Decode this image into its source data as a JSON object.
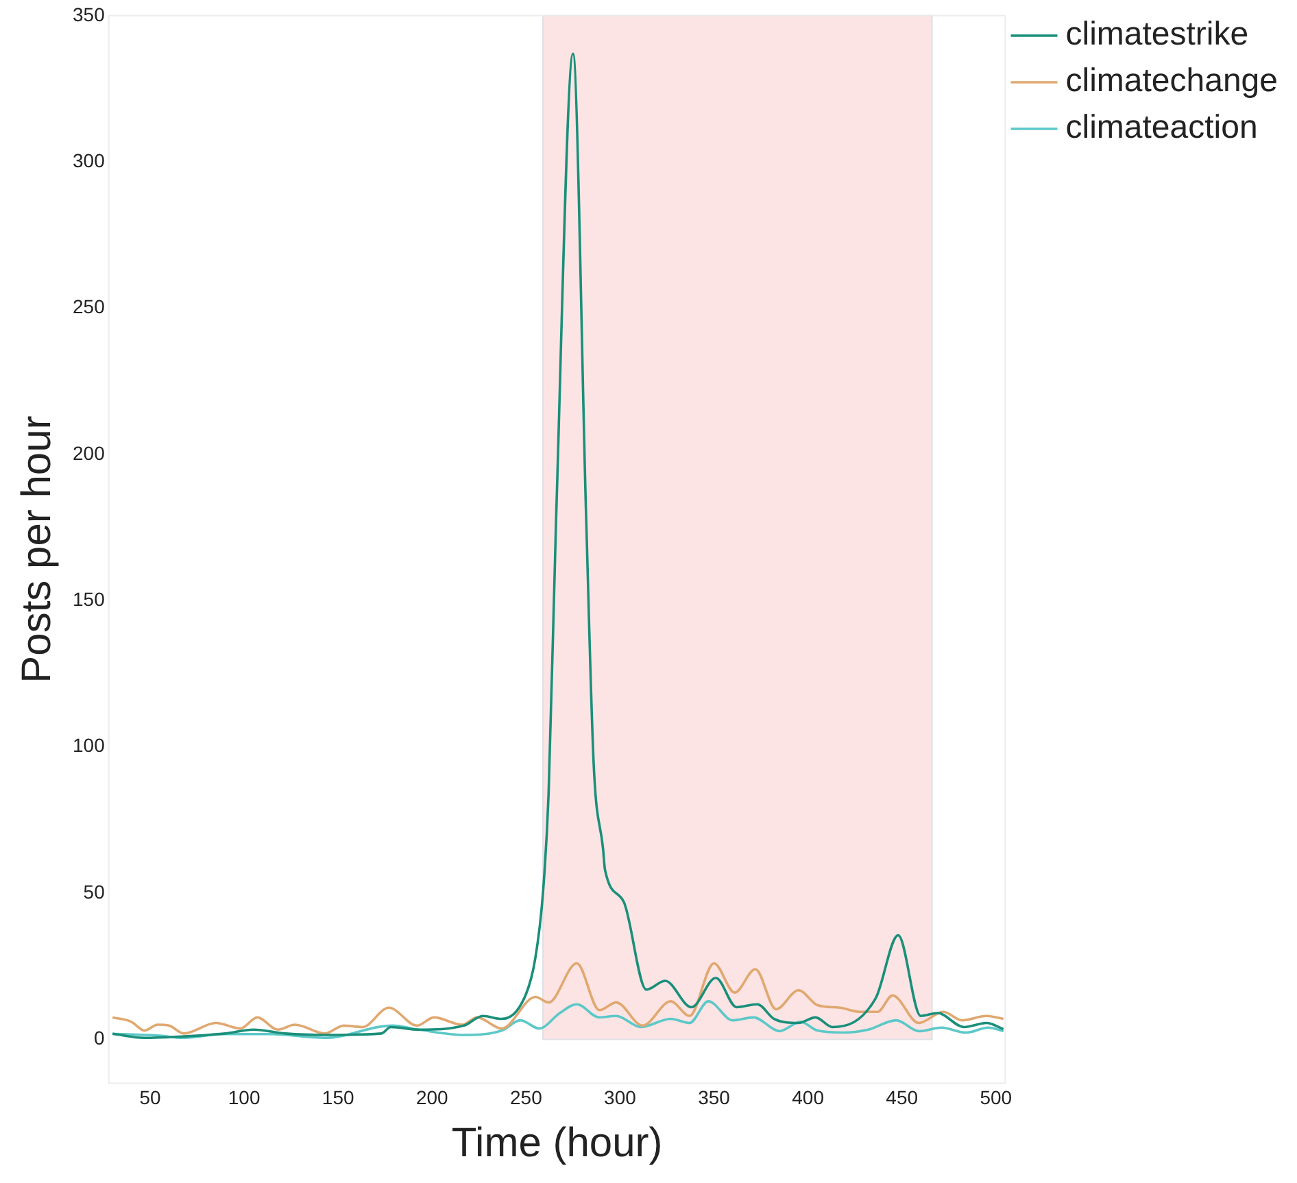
{
  "chart_data": {
    "type": "line",
    "xlabel": "Time (hour)",
    "ylabel": "Posts per hour",
    "xlim": [
      28,
      505
    ],
    "xticks": [
      50,
      100,
      150,
      200,
      250,
      300,
      350,
      400,
      450,
      500
    ],
    "ylim": [
      -15,
      350
    ],
    "yticks": [
      0,
      50,
      100,
      150,
      200,
      250,
      300,
      350
    ],
    "grid": false,
    "legend": "top right",
    "marker": "none",
    "line_style": "solid",
    "bands": [
      {
        "axis": "x",
        "from": 259,
        "to": 466,
        "color": "#fce4e4"
      }
    ],
    "series": [
      {
        "name": "climatestrike",
        "color": "#1a8f7a",
        "x": [
          30,
          47,
          68,
          90,
          105,
          122,
          143,
          173,
          178,
          193,
          217,
          227,
          237,
          250,
          255,
          259,
          262,
          266,
          275,
          282,
          286,
          291,
          292,
          302,
          314,
          324,
          338,
          351,
          362,
          373,
          382,
          395,
          404,
          413,
          436,
          448,
          460,
          469,
          483,
          495,
          504
        ],
        "values": [
          1.9,
          0.5,
          1,
          2,
          3.3,
          2,
          1.5,
          2,
          4.2,
          3.3,
          4.7,
          8,
          7,
          15.5,
          28,
          50,
          84,
          178,
          337,
          178,
          94,
          65,
          58,
          47,
          17,
          20,
          11,
          21,
          11,
          12,
          7,
          5.6,
          7.5,
          4.2,
          14,
          35.6,
          8,
          9,
          4.2,
          5.6,
          3.5
        ]
      },
      {
        "name": "climatechange",
        "color": "#e0a870",
        "x": [
          30,
          40,
          47,
          54,
          60,
          68,
          85,
          98,
          107,
          118,
          127,
          143,
          153,
          163,
          177,
          192,
          201,
          216,
          224,
          237,
          255,
          262,
          277,
          289,
          298,
          312,
          327,
          337,
          350,
          361,
          372,
          383,
          395,
          405,
          417,
          428,
          437,
          445,
          459,
          472,
          482,
          495,
          504
        ],
        "values": [
          7.5,
          6,
          3,
          5,
          4.7,
          2,
          5.6,
          3.7,
          7.5,
          3.3,
          5,
          2,
          4.7,
          4.2,
          10.8,
          4.7,
          7.5,
          5,
          7.5,
          3.7,
          14.5,
          12.6,
          26,
          10,
          12.6,
          4.7,
          13,
          8,
          26,
          16,
          24,
          10.3,
          16.8,
          11.7,
          10.8,
          9.4,
          9.4,
          15,
          5.6,
          9.4,
          6.5,
          8,
          7
        ]
      },
      {
        "name": "climateaction",
        "color": "#5cc8c8",
        "x": [
          30,
          54,
          68,
          88,
          114,
          143,
          179,
          193,
          217,
          237,
          247,
          257,
          268,
          277,
          289,
          298,
          311,
          327,
          337,
          347,
          360,
          371,
          385,
          396,
          405,
          419,
          432,
          447,
          459,
          471,
          484,
          496,
          504
        ],
        "values": [
          1.9,
          1.3,
          0.5,
          1.8,
          1.8,
          0.5,
          4.7,
          3.3,
          1.5,
          3,
          6.5,
          3.7,
          9,
          12,
          7.5,
          8,
          4.2,
          7,
          5.6,
          13,
          6.5,
          7.5,
          2.8,
          6,
          3,
          2.3,
          3.3,
          6.5,
          2.8,
          4,
          2.3,
          4,
          2.8
        ]
      }
    ]
  }
}
